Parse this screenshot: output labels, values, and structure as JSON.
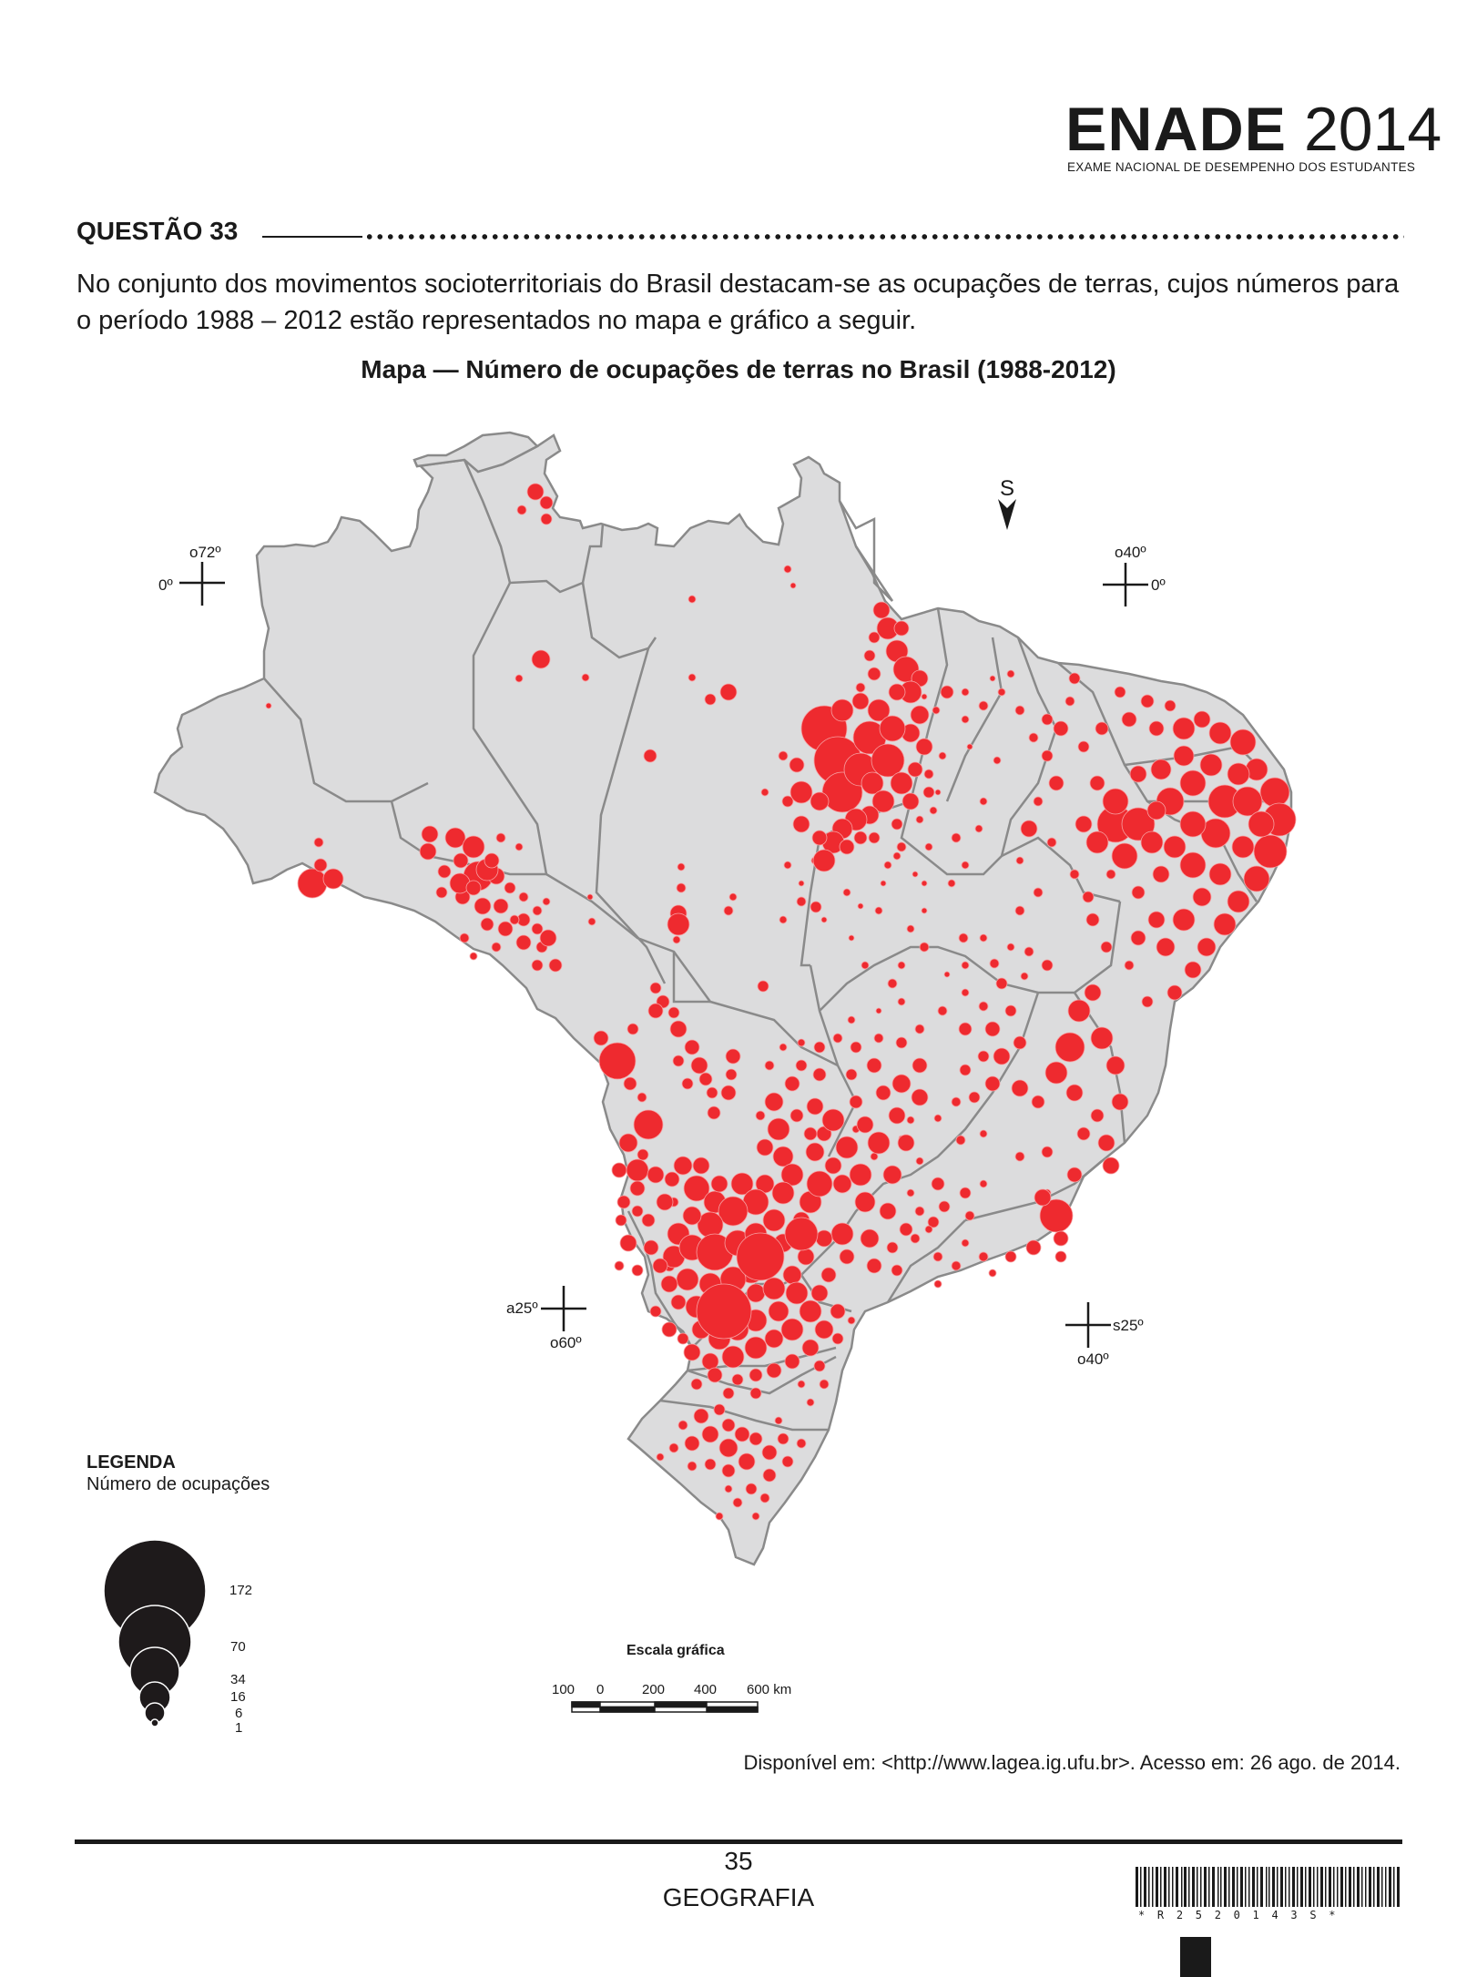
{
  "header": {
    "logo_word": "ENADE",
    "logo_year": "2014",
    "logo_subtitle": "EXAME NACIONAL DE DESEMPENHO DOS ESTUDANTES"
  },
  "question": {
    "label": "QUESTÃO 33",
    "text": "No conjunto dos movimentos socioterritoriais do Brasil destacam-se as ocupações de terras, cujos números para o período 1988 – 2012 estão representados no mapa e gráfico a seguir."
  },
  "map": {
    "title": "Mapa — Número de ocupações de terras no Brasil (1988-2012)",
    "north_label": "S",
    "land_color": "#dcdcdd",
    "border_color": "#8a8a8a",
    "point_color": "#ee2a2f",
    "coordinates": [
      {
        "lon": "o72º",
        "lat": "0º"
      },
      {
        "lon": "o40º",
        "lat": "0º"
      },
      {
        "lon": "o60º",
        "lat": "a25º"
      },
      {
        "lon": "o40º",
        "lat": "s25º"
      }
    ]
  },
  "legend": {
    "title": "LEGENDA",
    "subtitle": "Número de ocupações",
    "items": [
      {
        "value": "172"
      },
      {
        "value": "70"
      },
      {
        "value": "34"
      },
      {
        "value": "16"
      },
      {
        "value": "6"
      },
      {
        "value": "1"
      }
    ]
  },
  "scale": {
    "title": "Escala gráfica",
    "labels": [
      "100",
      "0",
      "200",
      "400",
      "600 km"
    ]
  },
  "source": "Disponível em: <http://www.lagea.ig.ufu.br>. Acesso em: 26 ago. de 2014.",
  "footer": {
    "page_number": "35",
    "subject": "GEOGRAFIA",
    "barcode_text": "*R2520143S*"
  }
}
